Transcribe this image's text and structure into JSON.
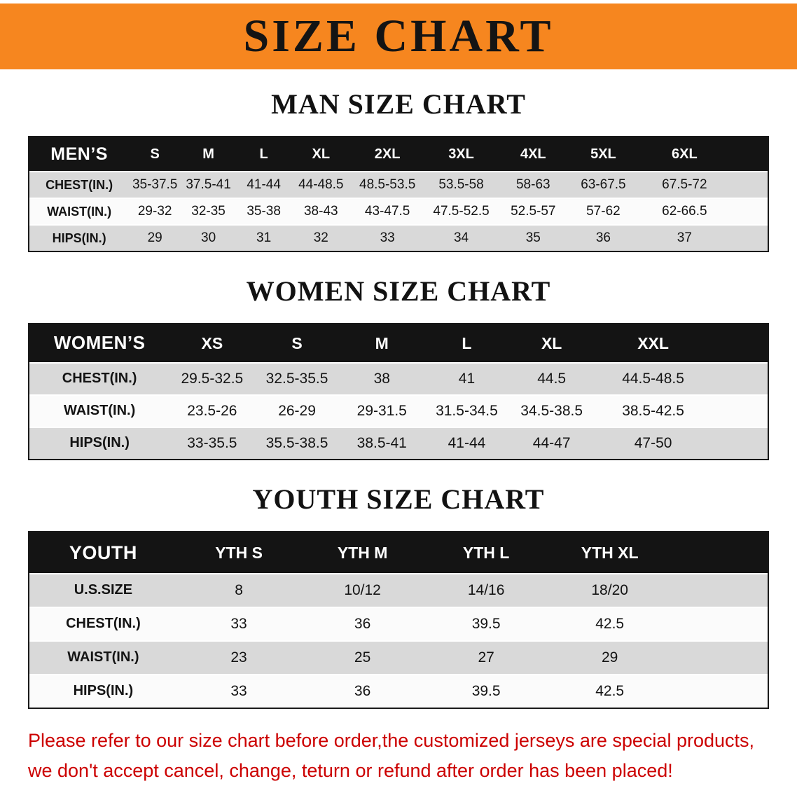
{
  "banner": {
    "title": "SIZE CHART",
    "bg_color": "#f6861f"
  },
  "sections": [
    {
      "heading": "MAN SIZE CHART",
      "label_header": "MEN’S",
      "columns": [
        "S",
        "M",
        "L",
        "XL",
        "2XL",
        "3XL",
        "4XL",
        "5XL",
        "6XL"
      ],
      "rows": [
        {
          "label": "CHEST(IN.)",
          "values": [
            "35-37.5",
            "37.5-41",
            "41-44",
            "44-48.5",
            "48.5-53.5",
            "53.5-58",
            "58-63",
            "63-67.5",
            "67.5-72"
          ]
        },
        {
          "label": "WAIST(IN.)",
          "values": [
            "29-32",
            "32-35",
            "35-38",
            "38-43",
            "43-47.5",
            "47.5-52.5",
            "52.5-57",
            "57-62",
            "62-66.5"
          ]
        },
        {
          "label": "HIPS(IN.)",
          "values": [
            "29",
            "30",
            "31",
            "32",
            "33",
            "34",
            "35",
            "36",
            "37"
          ]
        }
      ]
    },
    {
      "heading": "WOMEN SIZE CHART",
      "label_header": "WOMEN’S",
      "columns": [
        "XS",
        "S",
        "M",
        "L",
        "XL",
        "XXL"
      ],
      "rows": [
        {
          "label": "CHEST(IN.)",
          "values": [
            "29.5-32.5",
            "32.5-35.5",
            "38",
            "41",
            "44.5",
            "44.5-48.5"
          ]
        },
        {
          "label": "WAIST(IN.)",
          "values": [
            "23.5-26",
            "26-29",
            "29-31.5",
            "31.5-34.5",
            "34.5-38.5",
            "38.5-42.5"
          ]
        },
        {
          "label": "HIPS(IN.)",
          "values": [
            "33-35.5",
            "35.5-38.5",
            "38.5-41",
            "41-44",
            "44-47",
            "47-50"
          ]
        }
      ]
    },
    {
      "heading": "YOUTH SIZE CHART",
      "label_header": "YOUTH",
      "columns": [
        "YTH S",
        "YTH M",
        "YTH L",
        "YTH XL"
      ],
      "rows": [
        {
          "label": "U.S.SIZE",
          "values": [
            "8",
            "10/12",
            "14/16",
            "18/20"
          ]
        },
        {
          "label": "CHEST(IN.)",
          "values": [
            "33",
            "36",
            "39.5",
            "42.5"
          ]
        },
        {
          "label": "WAIST(IN.)",
          "values": [
            "23",
            "25",
            "27",
            "29"
          ]
        },
        {
          "label": "HIPS(IN.)",
          "values": [
            "33",
            "36",
            "39.5",
            "42.5"
          ]
        }
      ]
    }
  ],
  "disclaimer": {
    "line1": "Please refer to our size chart before order,the customized jerseys are special products,",
    "line2": "we don't accept cancel, change, teturn or refund after order has been placed!",
    "color": "#cc0000"
  }
}
